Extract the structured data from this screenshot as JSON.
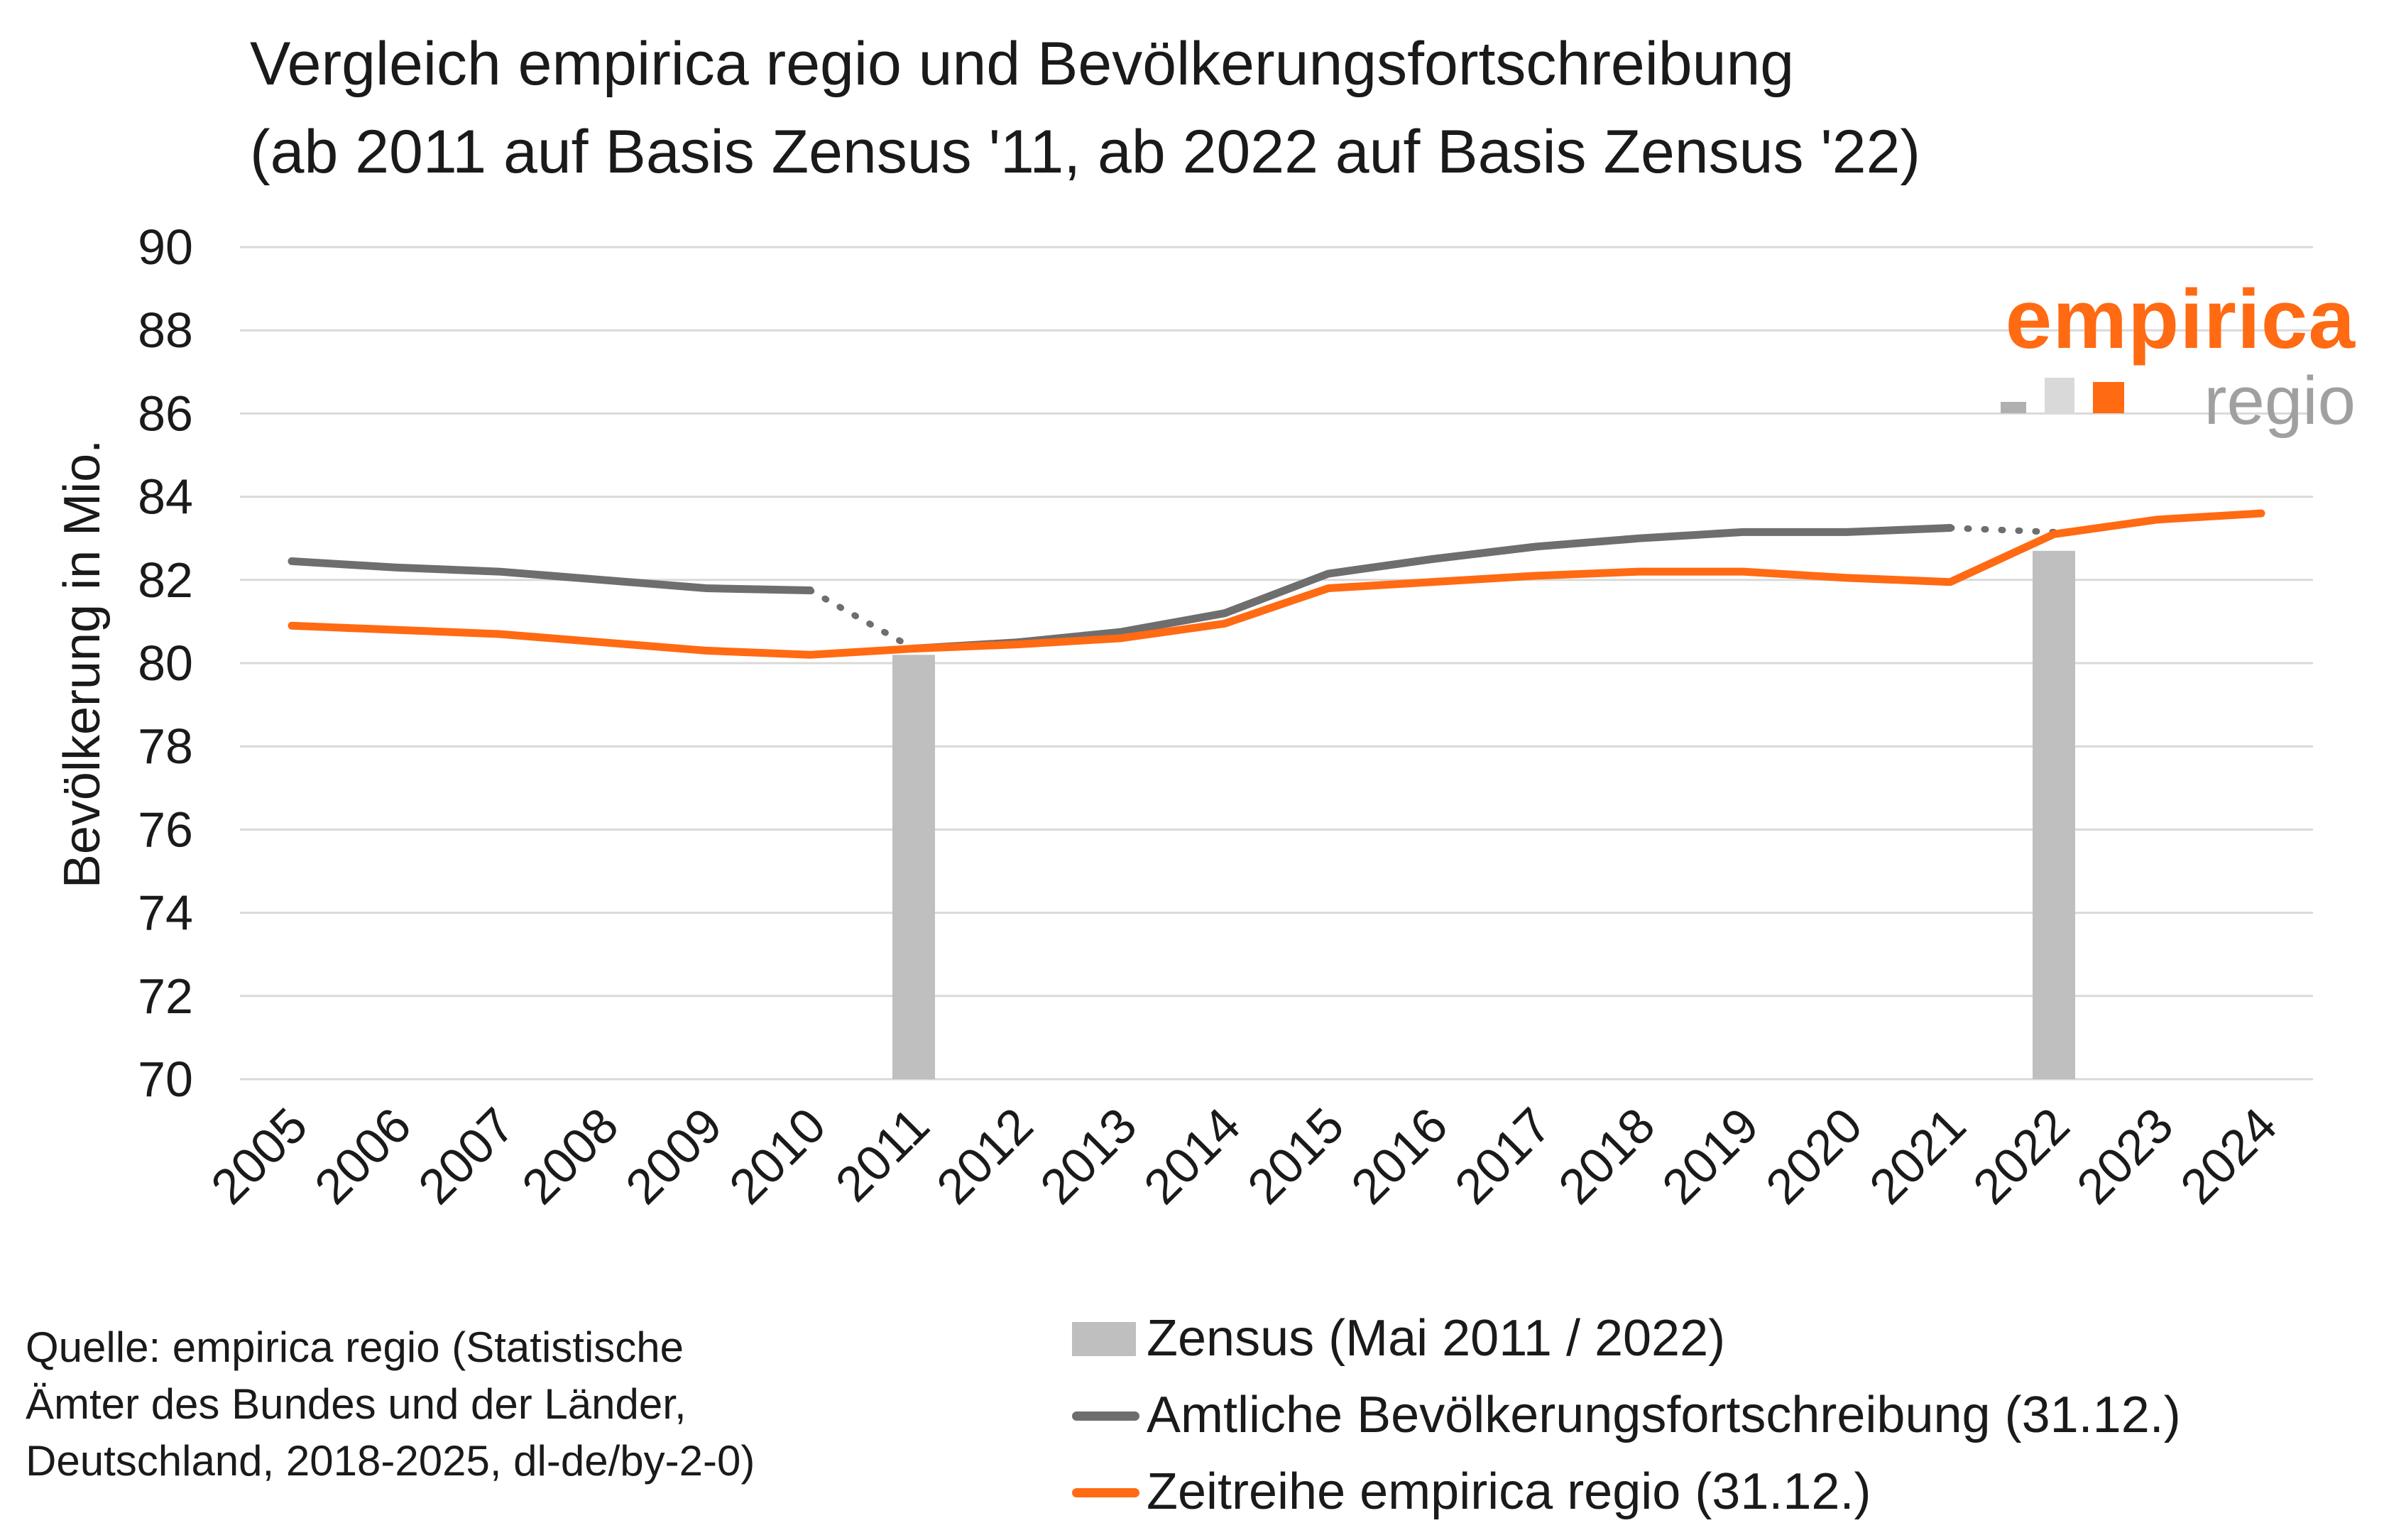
{
  "title": {
    "line1": "Vergleich empirica regio und Bevölkerungsfortschreibung",
    "line2": "(ab 2011 auf Basis Zensus '11, ab 2022 auf Basis Zensus '22)"
  },
  "brand": {
    "name_top": "empirica",
    "name_bottom": "regio"
  },
  "source": {
    "line1": "Quelle: empirica regio (Statistische",
    "line2": "Ämter des Bundes und der Länder,",
    "line3": "Deutschland, 2018-2025, dl-de/by-2-0)"
  },
  "colors": {
    "census": "#bfbfbf",
    "official": "#6e6e6e",
    "empirica": "#ff6a13",
    "grid": "#d9d9d9"
  },
  "chart_data": {
    "type": "line",
    "ylabel": "Bevölkerung in Mio.",
    "xlabel": "",
    "ylim": [
      70,
      90
    ],
    "yticks": [
      "70",
      "72",
      "74",
      "76",
      "78",
      "80",
      "82",
      "84",
      "86",
      "88",
      "90"
    ],
    "categories": [
      "2005",
      "2006",
      "2007",
      "2008",
      "2009",
      "2010",
      "2011",
      "2012",
      "2013",
      "2014",
      "2015",
      "2016",
      "2017",
      "2018",
      "2019",
      "2020",
      "2021",
      "2022",
      "2023",
      "2024"
    ],
    "grid": true,
    "legend_position": "bottom-right",
    "series": [
      {
        "name": "Zensus (Mai 2011 / 2022)",
        "kind": "bar",
        "values": [
          null,
          null,
          null,
          null,
          null,
          null,
          80.2,
          null,
          null,
          null,
          null,
          null,
          null,
          null,
          null,
          null,
          null,
          82.7,
          null,
          null
        ]
      },
      {
        "name": "Amtliche Bevölkerungsfortschreibung (31.12.)",
        "kind": "line",
        "values": [
          82.45,
          82.3,
          82.2,
          82.0,
          81.8,
          81.75,
          80.35,
          80.5,
          80.75,
          81.2,
          82.15,
          82.5,
          82.8,
          83.0,
          83.15,
          83.15,
          83.25,
          83.15,
          null,
          null
        ],
        "dotted_segments": [
          [
            5,
            6
          ],
          [
            16,
            17
          ]
        ]
      },
      {
        "name": "Zeitreihe empirica regio (31.12.)",
        "kind": "line",
        "values": [
          80.9,
          80.8,
          80.7,
          80.5,
          80.3,
          80.2,
          80.35,
          80.45,
          80.6,
          80.95,
          81.8,
          81.95,
          82.1,
          82.2,
          82.2,
          82.05,
          81.95,
          83.1,
          83.45,
          83.6
        ]
      }
    ]
  }
}
